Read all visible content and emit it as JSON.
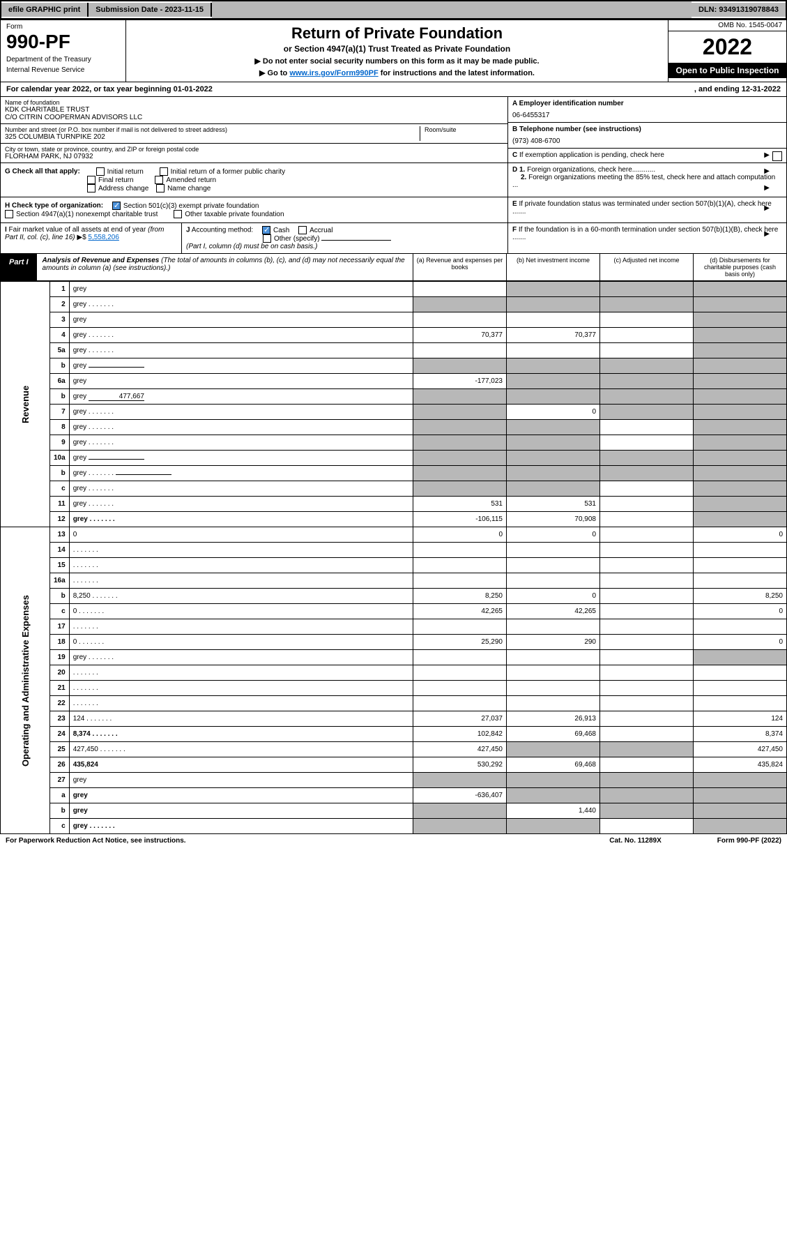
{
  "topbar": {
    "efile_btn": "efile GRAPHIC print",
    "submission": "Submission Date - 2023-11-15",
    "dln": "DLN: 93491319078843"
  },
  "header": {
    "form_label": "Form",
    "form_num": "990-PF",
    "dept1": "Department of the Treasury",
    "dept2": "Internal Revenue Service",
    "title": "Return of Private Foundation",
    "subtitle": "or Section 4947(a)(1) Trust Treated as Private Foundation",
    "note1": "▶ Do not enter social security numbers on this form as it may be made public.",
    "note2_pre": "▶ Go to ",
    "note2_link": "www.irs.gov/Form990PF",
    "note2_post": " for instructions and the latest information.",
    "omb": "OMB No. 1545-0047",
    "year": "2022",
    "open": "Open to Public Inspection"
  },
  "cal": {
    "text": "For calendar year 2022, or tax year beginning 01-01-2022",
    "ending": ", and ending 12-31-2022"
  },
  "name_lbl": "Name of foundation",
  "name_val1": "KDK CHARITABLE TRUST",
  "name_val2": "C/O CITRIN COOPERMAN ADVISORS LLC",
  "street_lbl": "Number and street (or P.O. box number if mail is not delivered to street address)",
  "street_val": "325 COLUMBIA TURNPIKE 202",
  "room_lbl": "Room/suite",
  "city_lbl": "City or town, state or province, country, and ZIP or foreign postal code",
  "city_val": "FLORHAM PARK, NJ  07932",
  "a_lbl": "A Employer identification number",
  "a_val": "06-6455317",
  "b_lbl": "B Telephone number (see instructions)",
  "b_val": "(973) 408-6700",
  "c_lbl": "C If exemption application is pending, check here",
  "d1_lbl": "D 1. Foreign organizations, check here............",
  "d2_lbl": "2. Foreign organizations meeting the 85% test, check here and attach computation ...",
  "e_lbl": "E  If private foundation status was terminated under section 507(b)(1)(A), check here .......",
  "f_lbl": "F  If the foundation is in a 60-month termination under section 507(b)(1)(B), check here .......",
  "g_lbl": "G Check all that apply:",
  "g_opts": [
    "Initial return",
    "Initial return of a former public charity",
    "Final return",
    "Amended return",
    "Address change",
    "Name change"
  ],
  "h_lbl": "H Check type of organization:",
  "h_opts": [
    "Section 501(c)(3) exempt private foundation",
    "Section 4947(a)(1) nonexempt charitable trust",
    "Other taxable private foundation"
  ],
  "i_lbl": "I Fair market value of all assets at end of year (from Part II, col. (c), line 16)",
  "i_val": "5,558,206",
  "j_lbl": "J Accounting method:",
  "j_opts": [
    "Cash",
    "Accrual",
    "Other (specify)"
  ],
  "j_note": "(Part I, column (d) must be on cash basis.)",
  "part1": "Part I",
  "part1_title": "Analysis of Revenue and Expenses",
  "part1_note": " (The total of amounts in columns (b), (c), and (d) may not necessarily equal the amounts in column (a) (see instructions).)",
  "cols": {
    "a": "(a) Revenue and expenses per books",
    "b": "(b) Net investment income",
    "c": "(c) Adjusted net income",
    "d": "(d) Disbursements for charitable purposes (cash basis only)"
  },
  "side_rev": "Revenue",
  "side_exp": "Operating and Administrative Expenses",
  "rows": [
    {
      "n": "1",
      "d": "grey",
      "a": "",
      "b": "grey",
      "c": "grey"
    },
    {
      "n": "2",
      "d": "grey",
      "dots": true,
      "a": "grey",
      "b": "grey",
      "c": "grey"
    },
    {
      "n": "3",
      "d": "grey",
      "a": "",
      "b": "",
      "c": ""
    },
    {
      "n": "4",
      "d": "grey",
      "dots": true,
      "a": "70,377",
      "b": "70,377",
      "c": ""
    },
    {
      "n": "5a",
      "d": "grey",
      "dots": true,
      "a": "",
      "b": "",
      "c": ""
    },
    {
      "n": "b",
      "d": "grey",
      "inline": true,
      "a": "grey",
      "b": "grey",
      "c": "grey"
    },
    {
      "n": "6a",
      "d": "grey",
      "a": "-177,023",
      "b": "grey",
      "c": "grey"
    },
    {
      "n": "b",
      "d": "grey",
      "inline": true,
      "inlinev": "477,667",
      "a": "grey",
      "b": "grey",
      "c": "grey"
    },
    {
      "n": "7",
      "d": "grey",
      "dots": true,
      "a": "grey",
      "b": "0",
      "c": "grey"
    },
    {
      "n": "8",
      "d": "grey",
      "dots": true,
      "a": "grey",
      "b": "grey",
      "c": ""
    },
    {
      "n": "9",
      "d": "grey",
      "dots": true,
      "a": "grey",
      "b": "grey",
      "c": ""
    },
    {
      "n": "10a",
      "d": "grey",
      "inline": true,
      "a": "grey",
      "b": "grey",
      "c": "grey"
    },
    {
      "n": "b",
      "d": "grey",
      "dots": true,
      "inline": true,
      "a": "grey",
      "b": "grey",
      "c": "grey"
    },
    {
      "n": "c",
      "d": "grey",
      "dots": true,
      "a": "grey",
      "b": "grey",
      "c": ""
    },
    {
      "n": "11",
      "d": "grey",
      "dots": true,
      "a": "531",
      "b": "531",
      "c": ""
    },
    {
      "n": "12",
      "d": "grey",
      "dots": true,
      "bold": true,
      "a": "-106,115",
      "b": "70,908",
      "c": ""
    },
    {
      "n": "13",
      "d": "0",
      "a": "0",
      "b": "0",
      "c": ""
    },
    {
      "n": "14",
      "d": "",
      "dots": true,
      "a": "",
      "b": "",
      "c": ""
    },
    {
      "n": "15",
      "d": "",
      "dots": true,
      "a": "",
      "b": "",
      "c": ""
    },
    {
      "n": "16a",
      "d": "",
      "dots": true,
      "a": "",
      "b": "",
      "c": ""
    },
    {
      "n": "b",
      "d": "8,250",
      "dots": true,
      "a": "8,250",
      "b": "0",
      "c": ""
    },
    {
      "n": "c",
      "d": "0",
      "dots": true,
      "a": "42,265",
      "b": "42,265",
      "c": ""
    },
    {
      "n": "17",
      "d": "",
      "dots": true,
      "a": "",
      "b": "",
      "c": ""
    },
    {
      "n": "18",
      "d": "0",
      "dots": true,
      "a": "25,290",
      "b": "290",
      "c": ""
    },
    {
      "n": "19",
      "d": "grey",
      "dots": true,
      "a": "",
      "b": "",
      "c": ""
    },
    {
      "n": "20",
      "d": "",
      "dots": true,
      "a": "",
      "b": "",
      "c": ""
    },
    {
      "n": "21",
      "d": "",
      "dots": true,
      "a": "",
      "b": "",
      "c": ""
    },
    {
      "n": "22",
      "d": "",
      "dots": true,
      "a": "",
      "b": "",
      "c": ""
    },
    {
      "n": "23",
      "d": "124",
      "dots": true,
      "a": "27,037",
      "b": "26,913",
      "c": ""
    },
    {
      "n": "24",
      "d": "8,374",
      "dots": true,
      "bold": true,
      "a": "102,842",
      "b": "69,468",
      "c": ""
    },
    {
      "n": "25",
      "d": "427,450",
      "dots": true,
      "a": "427,450",
      "b": "grey",
      "c": "grey"
    },
    {
      "n": "26",
      "d": "435,824",
      "bold": true,
      "a": "530,292",
      "b": "69,468",
      "c": ""
    },
    {
      "n": "27",
      "d": "grey",
      "a": "grey",
      "b": "grey",
      "c": "grey"
    },
    {
      "n": "a",
      "d": "grey",
      "bold": true,
      "a": "-636,407",
      "b": "grey",
      "c": "grey"
    },
    {
      "n": "b",
      "d": "grey",
      "bold": true,
      "a": "grey",
      "b": "1,440",
      "c": "grey"
    },
    {
      "n": "c",
      "d": "grey",
      "dots": true,
      "bold": true,
      "a": "grey",
      "b": "grey",
      "c": ""
    }
  ],
  "footer": {
    "left": "For Paperwork Reduction Act Notice, see instructions.",
    "mid": "Cat. No. 11289X",
    "right": "Form 990-PF (2022)"
  }
}
